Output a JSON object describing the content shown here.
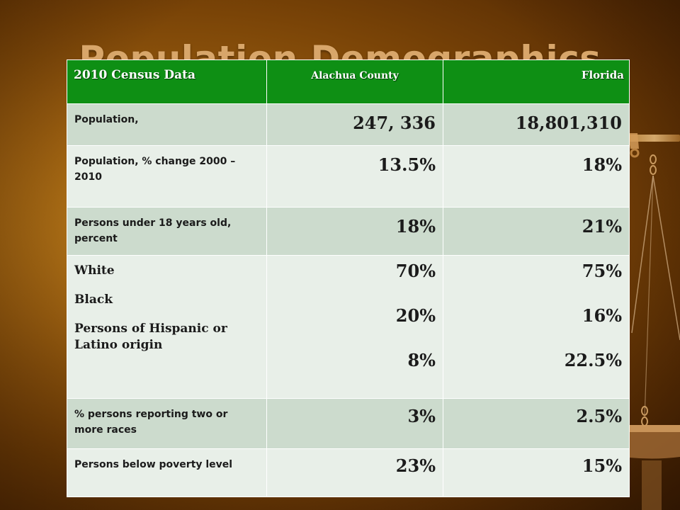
{
  "slide": {
    "title": "Population Demographics"
  },
  "table": {
    "headers": [
      "2010 Census Data",
      "Alachua County",
      "Florida"
    ],
    "rows": {
      "population": {
        "label": "Population,",
        "alachua": "247, 336",
        "florida": "18,801,310"
      },
      "population_change": {
        "label": "Population, % change 2000 – 2010",
        "alachua": "13.5%",
        "florida": "18%"
      },
      "under_18": {
        "label": "Persons under 18 years old, percent",
        "alachua": "18%",
        "florida": "21%"
      },
      "race": {
        "labels": [
          "White",
          "Black",
          "Persons of Hispanic or Latino origin"
        ],
        "alachua": [
          "70%",
          "20%",
          "8%"
        ],
        "florida": [
          "75%",
          "16%",
          "22.5%"
        ]
      },
      "two_or_more": {
        "label": "% persons reporting two or more races",
        "alachua": "3%",
        "florida": "2.5%"
      },
      "poverty": {
        "label": "Persons below poverty level",
        "alachua": "23%",
        "florida": "15%"
      }
    }
  },
  "colors": {
    "header_green": "#0e8f14",
    "row_dark": "#ccdbcd",
    "row_light": "#e8efe8",
    "background_brown": "#7a4407",
    "title_tan": "#d8a66a"
  },
  "decorations": {
    "scales": "scales-of-justice-icon"
  }
}
